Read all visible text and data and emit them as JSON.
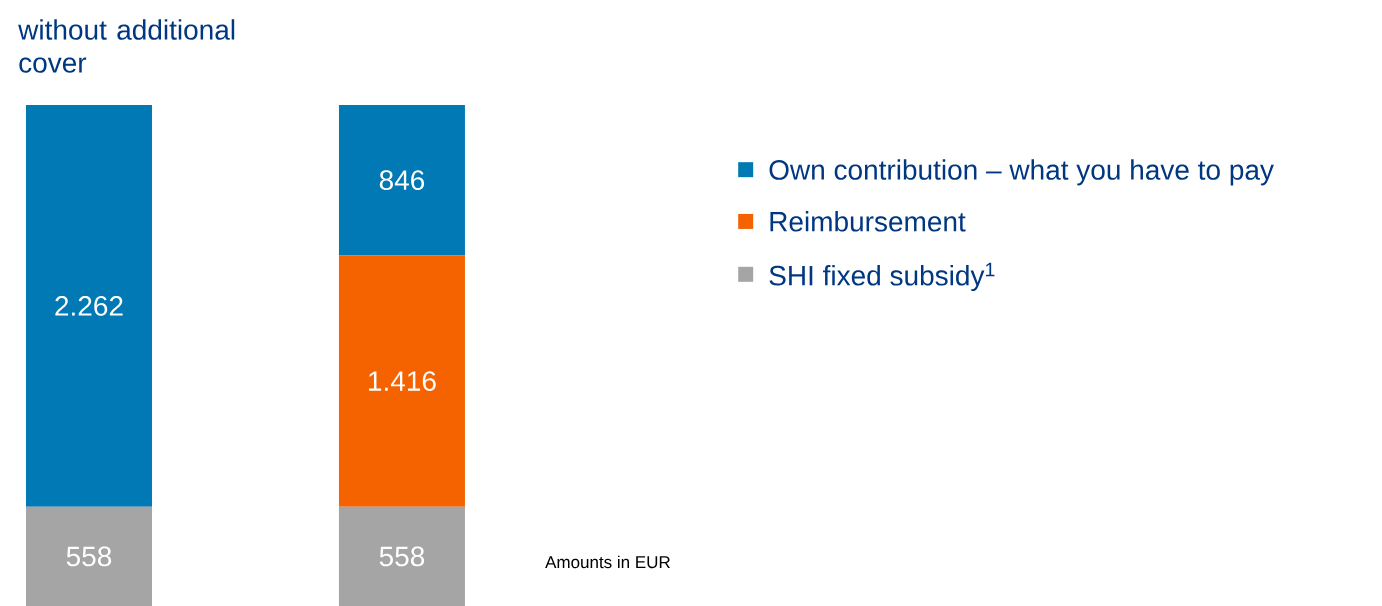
{
  "chart_data": {
    "type": "bar",
    "stacked": true,
    "categories": [
      "without additional cover",
      null
    ],
    "series": [
      {
        "name": "SHI fixed subsidy$^{1}$",
        "color": "#a5a5a5",
        "values": [
          558,
          558
        ],
        "value_labels": [
          "558",
          "558"
        ]
      },
      {
        "name": "Reimbursement",
        "color": "#f56300",
        "values": [
          null,
          1416
        ],
        "value_labels": [
          null,
          "1.416"
        ]
      },
      {
        "name": "Own contribution – what you have to pay",
        "color": "#0079b4",
        "values": [
          2262,
          846
        ],
        "value_labels": [
          "2.262",
          "846"
        ]
      }
    ],
    "legend": "right",
    "annotations": [
      "Amounts in EUR"
    ]
  }
}
